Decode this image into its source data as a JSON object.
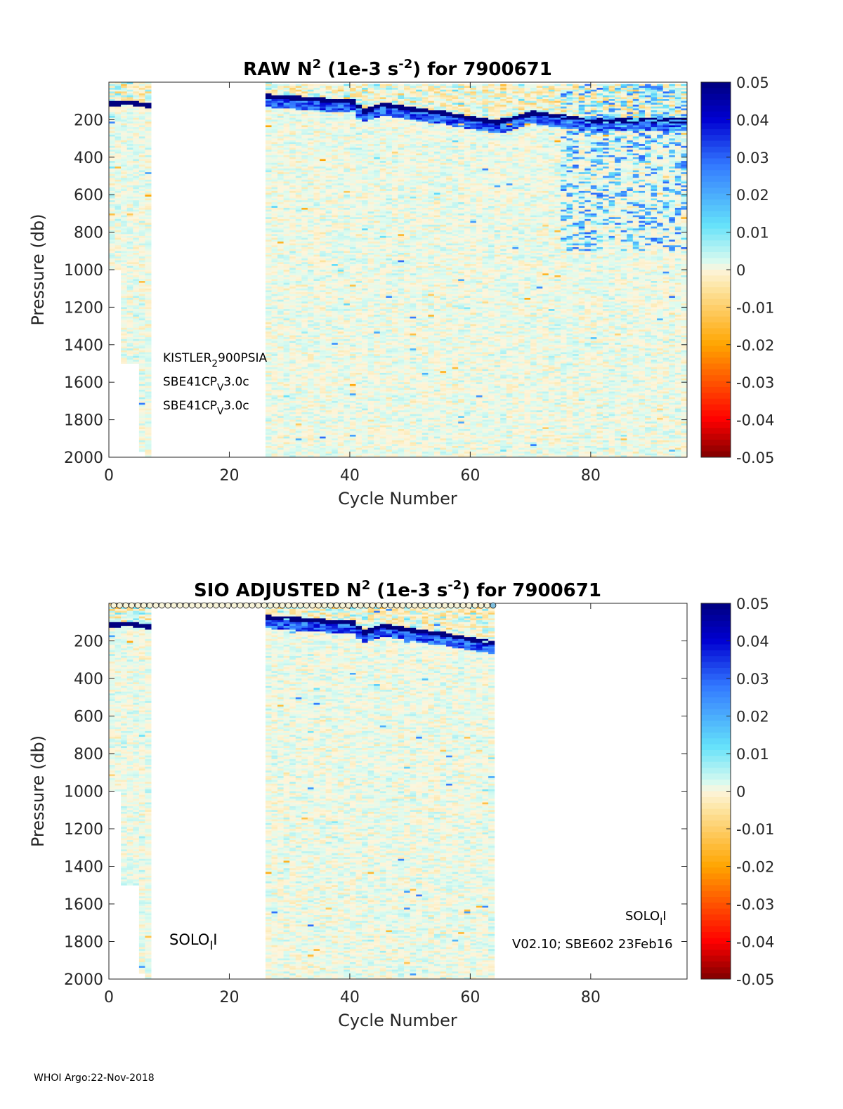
{
  "footer": "WHOI Argo:22-Nov-2018",
  "colors": {
    "zero_neg": "#fdf5dc",
    "zero_pos": "#dcfbef",
    "max": "#00007f",
    "min": "#7f0000"
  },
  "chart_data": [
    {
      "type": "heatmap",
      "title_parts": [
        "RAW N",
        "2",
        " (1e-3 s",
        "-2",
        ") for 7900671"
      ],
      "xlabel": "Cycle Number",
      "ylabel": "Pressure (db)",
      "xlim": [
        0,
        96
      ],
      "ylim": [
        0,
        2000
      ],
      "y_reversed": true,
      "xticks": [
        "0",
        "20",
        "40",
        "60",
        "80"
      ],
      "yticks": [
        "200",
        "400",
        "600",
        "800",
        "1000",
        "1200",
        "1400",
        "1600",
        "1800",
        "2000"
      ],
      "clim": [
        -0.05,
        0.05
      ],
      "colorbar_ticks": [
        "0.05",
        "0.04",
        "0.03",
        "0.02",
        "0.01",
        "0",
        "-0.01",
        "-0.02",
        "-0.03",
        "-0.04",
        "-0.05"
      ],
      "cycle_ranges": [
        [
          0,
          7
        ],
        [
          26,
          96
        ]
      ],
      "pycnocline_pressure": [
        [
          0,
          110
        ],
        [
          3,
          105
        ],
        [
          7,
          125
        ],
        [
          26,
          70
        ],
        [
          35,
          90
        ],
        [
          40,
          100
        ],
        [
          42,
          150
        ],
        [
          45,
          115
        ],
        [
          50,
          140
        ],
        [
          55,
          160
        ],
        [
          60,
          190
        ],
        [
          64,
          210
        ],
        [
          70,
          160
        ],
        [
          75,
          180
        ],
        [
          80,
          200
        ]
      ],
      "annotations": [
        {
          "text": "KISTLER",
          "sub": "2",
          "rest": "900PSIA"
        },
        {
          "text": "SBE41CP",
          "sub": "V",
          "rest": "3.0c"
        },
        {
          "text": "SBE41CP",
          "sub": "V",
          "rest": "3.0c"
        }
      ]
    },
    {
      "type": "heatmap",
      "title_parts": [
        "SIO  ADJUSTED N",
        "2",
        " (1e-3 s",
        "-2",
        ") for 7900671"
      ],
      "xlabel": "Cycle Number",
      "ylabel": "Pressure (db)",
      "xlim": [
        0,
        96
      ],
      "ylim": [
        0,
        2000
      ],
      "y_reversed": true,
      "xticks": [
        "0",
        "20",
        "40",
        "60",
        "80"
      ],
      "yticks": [
        "200",
        "400",
        "600",
        "800",
        "1000",
        "1200",
        "1400",
        "1600",
        "1800",
        "2000"
      ],
      "clim": [
        -0.05,
        0.05
      ],
      "colorbar_ticks": [
        "0.05",
        "0.04",
        "0.03",
        "0.02",
        "0.01",
        "0",
        "-0.01",
        "-0.02",
        "-0.03",
        "-0.04",
        "-0.05"
      ],
      "cycle_ranges": [
        [
          0,
          7
        ],
        [
          26,
          64
        ]
      ],
      "qc_marker_cycles": [
        1,
        64
      ],
      "annotations": [
        {
          "text": "SOLO",
          "sub": "I",
          "rest": "I"
        },
        {
          "text": "V02.10; SBE602 23Feb16",
          "sub": "",
          "rest": ""
        },
        {
          "text": "SOLO",
          "sub": "I",
          "rest": "I"
        }
      ]
    }
  ]
}
